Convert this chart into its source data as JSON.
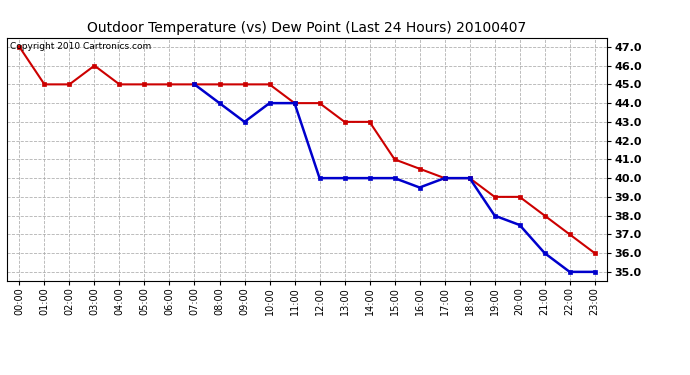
{
  "title": "Outdoor Temperature (vs) Dew Point (Last 24 Hours) 20100407",
  "copyright_text": "Copyright 2010 Cartronics.com",
  "x_labels": [
    "00:00",
    "01:00",
    "02:00",
    "03:00",
    "04:00",
    "05:00",
    "06:00",
    "07:00",
    "08:00",
    "09:00",
    "10:00",
    "11:00",
    "12:00",
    "13:00",
    "14:00",
    "15:00",
    "16:00",
    "17:00",
    "18:00",
    "19:00",
    "20:00",
    "21:00",
    "22:00",
    "23:00"
  ],
  "ylim": [
    34.5,
    47.5
  ],
  "yticks": [
    35.0,
    36.0,
    37.0,
    38.0,
    39.0,
    40.0,
    41.0,
    42.0,
    43.0,
    44.0,
    45.0,
    46.0,
    47.0
  ],
  "temp_color": "#cc0000",
  "dew_color": "#0000cc",
  "bg_color": "#ffffff",
  "grid_color": "#aaaaaa",
  "temp_values": [
    47.0,
    45.0,
    45.0,
    46.0,
    45.0,
    45.0,
    45.0,
    45.0,
    45.0,
    45.0,
    45.0,
    44.0,
    44.0,
    43.0,
    43.0,
    41.0,
    40.5,
    40.0,
    40.0,
    39.0,
    39.0,
    38.0,
    37.0,
    36.0
  ],
  "dew_values": [
    null,
    null,
    null,
    null,
    null,
    null,
    null,
    45.0,
    44.0,
    43.0,
    44.0,
    44.0,
    40.0,
    40.0,
    40.0,
    40.0,
    39.5,
    40.0,
    40.0,
    38.0,
    37.5,
    36.0,
    35.0,
    35.0
  ],
  "title_fontsize": 10,
  "tick_fontsize": 7,
  "ytick_fontsize": 8
}
